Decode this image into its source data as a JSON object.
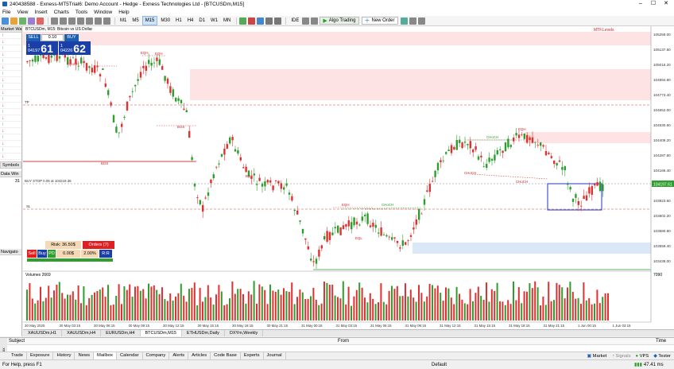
{
  "window": {
    "title": "240438588 - Exness-MT5Trial6: Demo Account - Hedge - Exness Technologies Ltd - [BTCUSDm,M15]"
  },
  "menu": [
    "File",
    "View",
    "Insert",
    "Charts",
    "Tools",
    "Window",
    "Help"
  ],
  "toolbar": {
    "timeframes": [
      "M1",
      "M5",
      "M15",
      "M30",
      "H1",
      "H4",
      "D1",
      "W1",
      "MN"
    ],
    "active_timeframe": "M15",
    "ide_label": "IDE",
    "algo_trading_label": "Algo Trading",
    "new_order_label": "New Order"
  },
  "market_watch": {
    "title": "Market Wa",
    "rows": [
      "up",
      "dn",
      "up",
      "dn",
      "up",
      "dn",
      "up",
      "dn",
      "up",
      "dn",
      "up",
      "dn",
      "up",
      "dn",
      "up",
      "dn",
      "up",
      "dn",
      "up",
      "dn"
    ],
    "symbols_tab": "Symbols"
  },
  "data_window": {
    "title": "Data Win",
    "value": "31"
  },
  "navigator": {
    "title": "Navigato"
  },
  "chart": {
    "symbol_caption": "BTCUSDm, M15: Bitcoin vs US Dollar",
    "indicator_caption": "MTF.Levels",
    "trade_panel": {
      "sell_label": "SELL",
      "buy_label": "BUY",
      "lot": "0.10",
      "bid_small": "1\n04197",
      "bid_big": "61",
      "ask_small": "1\n04226",
      "ask_big": "62"
    },
    "labels": {
      "tp": "TP",
      "sl": "SL",
      "buy_stop": "BUY STOP 0.05 at 104219.36",
      "bos": "BOS",
      "choch": "CHoCH",
      "eqh": "EQH",
      "eql": "EQL"
    },
    "price_axis": [
      "105259.00",
      "105137.60",
      "105016.20",
      "104894.80",
      "104773.40",
      "104652.00",
      "104530.60",
      "104409.20",
      "104287.80",
      "104166.40",
      "104045.00",
      "103923.60",
      "103802.20",
      "103680.80",
      "103559.40",
      "103438.00"
    ],
    "current_price_tag": "104197.61",
    "volumes_caption": "Volumes 2669",
    "volume_axis": "7090",
    "time_axis": [
      "30 May 2025",
      "30 May 03:15",
      "30 May 06:15",
      "30 May 09:15",
      "30 May 12:15",
      "30 May 15:15",
      "30 May 18:15",
      "30 May 21:15",
      "31 May 00:15",
      "31 May 03:15",
      "31 May 06:15",
      "31 May 09:15",
      "31 May 12:15",
      "31 May 15:15",
      "31 May 18:15",
      "31 May 21:15",
      "1 Jun 00:15",
      "1 Jun 03:15"
    ],
    "risk_panel": {
      "risk": "Risk: 36.50$",
      "orders": "Orders (7)",
      "sell": "Sell",
      "buy": "Buy",
      "pd": "PD",
      "pct1": "0.00$",
      "pct2": "2.00%",
      "rr": "R:R"
    }
  },
  "chart_tabs": [
    "XAUUSDm,H1",
    "XAUUSDm,H4",
    "EURUSDm,H4",
    "BTCUSDm,M15",
    "ETHUSDm,Daily",
    "DXYm,Weekly"
  ],
  "active_chart_tab": "BTCUSDm,M15",
  "toolbox": {
    "side_label": "Toolbox",
    "columns": [
      "Subject",
      "From",
      "Time"
    ],
    "tabs": [
      "Trade",
      "Exposure",
      "History",
      "News",
      "Mailbox",
      "Calendar",
      "Company",
      "Alerts",
      "Articles",
      "Code Base",
      "Experts",
      "Journal"
    ],
    "active_tab": "Mailbox",
    "right_items": [
      "Market",
      "Signals",
      "VPS",
      "Tester"
    ]
  },
  "status": {
    "help": "For Help, press F1",
    "profile": "Default",
    "ping": "47.41 ms"
  }
}
